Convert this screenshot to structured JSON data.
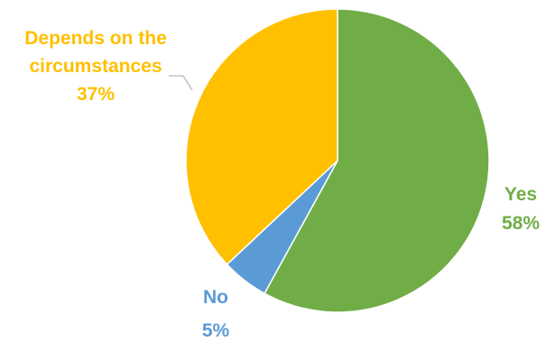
{
  "chart_data": {
    "type": "pie",
    "slices": [
      {
        "label": "Yes",
        "value": 58,
        "value_label": "58%",
        "color": "#70AD47"
      },
      {
        "label": "No",
        "value": 5,
        "value_label": "5%",
        "color": "#5B9BD5"
      },
      {
        "label": "Depends on the circumstances",
        "label_lines": [
          "Depends on the",
          "circumstances"
        ],
        "value": 37,
        "value_label": "37%",
        "color": "#FFC000"
      }
    ],
    "start": "12 o'clock",
    "direction": "clockwise",
    "legend": "none",
    "data_labels": "outside, category name and percentage, in slice color",
    "leader_line_color": "#A6A6A6"
  }
}
